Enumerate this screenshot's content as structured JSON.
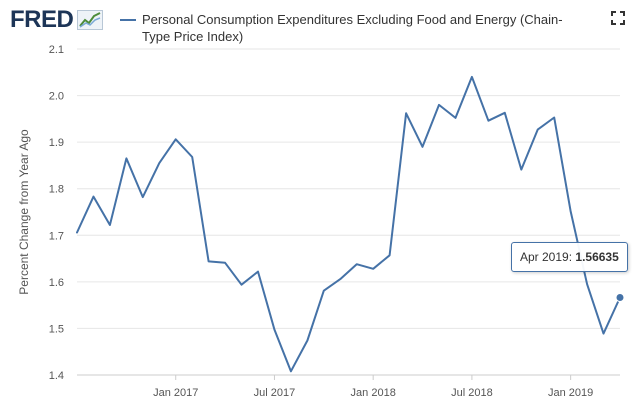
{
  "header": {
    "logo_text": "FRED",
    "logo_icon": "chart-trend-icon",
    "fullscreen_icon": "fullscreen-icon"
  },
  "colors": {
    "series": "#4572a7",
    "grid": "#e6e6e6",
    "logo": "#1d3557"
  },
  "tooltip": {
    "label": "Apr 2019:",
    "value": "1.56635"
  },
  "chart_data": {
    "type": "line",
    "title": "",
    "legend": "Personal Consumption Expenditures Excluding Food and Energy (Chain-Type Price Index)",
    "legend_position": "top",
    "ylabel": "Percent Change from Year Ago",
    "xlabel": "",
    "ylim": [
      1.4,
      2.1
    ],
    "y_ticks": [
      1.4,
      1.5,
      1.6,
      1.7,
      1.8,
      1.9,
      2.0,
      2.1
    ],
    "y_tick_labels": [
      "1.4",
      "1.5",
      "1.6",
      "1.7",
      "1.8",
      "1.9",
      "2.0",
      "2.1"
    ],
    "x_ticks": [
      {
        "index": 6,
        "label": "Jan 2017"
      },
      {
        "index": 12,
        "label": "Jul 2017"
      },
      {
        "index": 18,
        "label": "Jan 2018"
      },
      {
        "index": 24,
        "label": "Jul 2018"
      },
      {
        "index": 30,
        "label": "Jan 2019"
      }
    ],
    "grid": true,
    "series": [
      {
        "name": "Personal Consumption Expenditures Excluding Food and Energy (Chain-Type Price Index)",
        "x": [
          "Jul 2016",
          "Aug 2016",
          "Sep 2016",
          "Oct 2016",
          "Nov 2016",
          "Dec 2016",
          "Jan 2017",
          "Feb 2017",
          "Mar 2017",
          "Apr 2017",
          "May 2017",
          "Jun 2017",
          "Jul 2017",
          "Aug 2017",
          "Sep 2017",
          "Oct 2017",
          "Nov 2017",
          "Dec 2017",
          "Jan 2018",
          "Feb 2018",
          "Mar 2018",
          "Apr 2018",
          "May 2018",
          "Jun 2018",
          "Jul 2018",
          "Aug 2018",
          "Sep 2018",
          "Oct 2018",
          "Nov 2018",
          "Dec 2018",
          "Jan 2019",
          "Feb 2019",
          "Mar 2019",
          "Apr 2019"
        ],
        "values": [
          1.706,
          1.783,
          1.722,
          1.865,
          1.782,
          1.855,
          1.906,
          1.868,
          1.644,
          1.641,
          1.594,
          1.622,
          1.497,
          1.408,
          1.474,
          1.581,
          1.606,
          1.638,
          1.628,
          1.657,
          1.962,
          1.89,
          1.98,
          1.952,
          2.04,
          1.946,
          1.963,
          1.841,
          1.927,
          1.953,
          1.752,
          1.595,
          1.489,
          1.56635
        ]
      }
    ],
    "highlight_index": 33
  }
}
